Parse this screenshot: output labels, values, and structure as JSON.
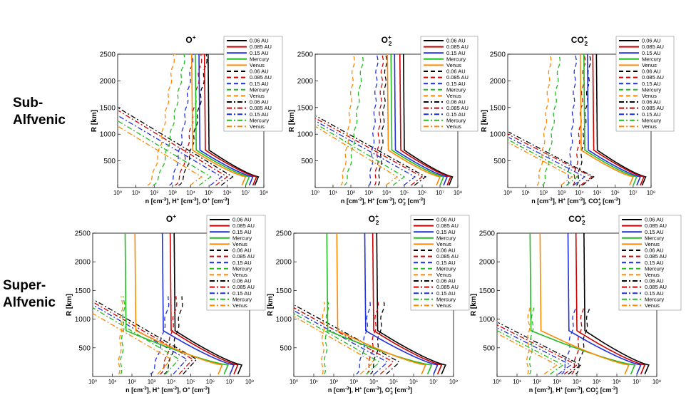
{
  "row_labels": {
    "sub": "Sub-\nAlfvenic",
    "super": "Super-\nAlfvenic"
  },
  "legend_entries": [
    {
      "label": "0.06 AU",
      "color": "#000000",
      "style": "solid"
    },
    {
      "label": "0.085 AU",
      "color": "#cc0000",
      "style": "solid"
    },
    {
      "label": "0.15 AU",
      "color": "#1f2fdd",
      "style": "solid"
    },
    {
      "label": "Mercury",
      "color": "#22bb22",
      "style": "solid"
    },
    {
      "label": "Venus",
      "color": "#ff8800",
      "style": "solid"
    },
    {
      "label": "0.06 AU",
      "color": "#000000",
      "style": "dash"
    },
    {
      "label": "0.085 AU",
      "color": "#cc0000",
      "style": "dash"
    },
    {
      "label": "0.15 AU",
      "color": "#1f2fdd",
      "style": "dash"
    },
    {
      "label": "Mercury",
      "color": "#22bb22",
      "style": "dash"
    },
    {
      "label": "Venus",
      "color": "#ff8800",
      "style": "dash"
    },
    {
      "label": "0.06 AU",
      "color": "#000000",
      "style": "dashdot"
    },
    {
      "label": "0.085 AU",
      "color": "#cc0000",
      "style": "dashdot"
    },
    {
      "label": "0.15 AU",
      "color": "#1f2fdd",
      "style": "dashdot"
    },
    {
      "label": "Mercury",
      "color": "#22bb22",
      "style": "dashdot"
    },
    {
      "label": "Venus",
      "color": "#ff8800",
      "style": "dashdot"
    }
  ],
  "chart_data": [
    {
      "type": "line",
      "row": "sub",
      "col": 0,
      "title": "O+",
      "xlabel": "n [cm-3], H+ [cm-3], O+ [cm-3]",
      "ylabel": "R [km]",
      "xscale": "log",
      "xlim": [
        1,
        100000000
      ],
      "ylim": [
        0,
        2500
      ],
      "yticks": [
        500,
        1000,
        1500,
        2000,
        2500
      ],
      "xticks": [
        "10⁰",
        "10¹",
        "10²",
        "10³",
        "10⁴",
        "10⁵",
        "10⁶",
        "10⁷",
        "10⁸"
      ],
      "series_groups": {
        "n": {
          "peak_log": [
            7.7,
            7.6,
            7.4,
            7.2,
            7.0
          ],
          "peak_alt": 200,
          "top_log": [
            5.0,
            4.8,
            4.5,
            4.3,
            4.1
          ],
          "break_alt": 700
        },
        "hplus": {
          "low_log": [
            3.3,
            3.1,
            2.8,
            1.9,
            1.6
          ],
          "high_log": [
            5.0,
            4.7,
            4.2,
            3.8,
            3.2
          ],
          "ramp_top": 2800
        },
        "ion": {
          "peak_log": [
            6.3,
            6.0,
            5.7,
            5.1,
            4.6
          ],
          "peak_alt": 200,
          "zero_alt": [
            1500,
            1450,
            1350,
            1250,
            1150
          ]
        }
      }
    },
    {
      "type": "line",
      "row": "sub",
      "col": 1,
      "title": "O2+",
      "xlabel": "n [cm-3], H+ [cm-3], O2+ [cm-3]",
      "ylabel": "R [km]",
      "xscale": "log",
      "xlim": [
        1,
        100000000
      ],
      "ylim": [
        0,
        2500
      ],
      "yticks": [
        500,
        1000,
        1500,
        2000,
        2500
      ],
      "xticks": [
        "10⁰",
        "10¹",
        "10²",
        "10³",
        "10⁴",
        "10⁵",
        "10⁶",
        "10⁷",
        "10⁸"
      ],
      "series_groups": {
        "n": {
          "peak_log": [
            7.7,
            7.6,
            7.4,
            7.2,
            7.0
          ],
          "peak_alt": 200,
          "top_log": [
            5.0,
            4.8,
            4.5,
            4.3,
            4.1
          ],
          "break_alt": 700
        },
        "hplus": {
          "low_log": [
            3.5,
            3.3,
            3.0,
            1.6,
            1.4
          ],
          "high_log": [
            4.0,
            3.8,
            3.5,
            2.7,
            2.2
          ],
          "ramp_top": 2600
        },
        "ion": {
          "peak_log": [
            6.2,
            6.0,
            5.6,
            5.0,
            4.6
          ],
          "peak_alt": 200,
          "zero_alt": [
            1350,
            1300,
            1250,
            1200,
            1150
          ]
        }
      }
    },
    {
      "type": "line",
      "row": "sub",
      "col": 2,
      "title": "CO2+",
      "xlabel": "n [cm-3], H+ [cm-3], CO2+ [cm-3]",
      "ylabel": "R [km]",
      "xscale": "log",
      "xlim": [
        1,
        100000000
      ],
      "ylim": [
        0,
        2500
      ],
      "yticks": [
        500,
        1000,
        1500,
        2000,
        2500
      ],
      "xticks": [
        "10⁰",
        "10¹",
        "10²",
        "10³",
        "10⁴",
        "10⁵",
        "10⁶",
        "10⁷",
        "10⁸"
      ],
      "series_groups": {
        "n": {
          "peak_log": [
            7.7,
            7.6,
            7.4,
            7.2,
            7.0
          ],
          "peak_alt": 200,
          "top_log": [
            5.0,
            4.8,
            4.5,
            4.3,
            4.1
          ],
          "break_alt": 700
        },
        "hplus": {
          "low_log": [
            3.8,
            3.6,
            3.3,
            1.9,
            1.6
          ],
          "high_log": [
            4.6,
            4.3,
            3.8,
            2.9,
            2.4
          ],
          "ramp_top": 2500
        },
        "ion": {
          "peak_log": [
            4.8,
            4.7,
            4.3,
            3.9,
            3.6
          ],
          "peak_alt": 200,
          "zero_alt": [
            1050,
            1000,
            950,
            900,
            850
          ]
        }
      }
    },
    {
      "type": "line",
      "row": "super",
      "col": 0,
      "title": "O+",
      "xlabel": "n [cm-3], H+ [cm-3], O+ [cm-3]",
      "ylabel": "R [km]",
      "xscale": "log",
      "xlim": [
        1,
        100000000
      ],
      "ylim": [
        0,
        2500
      ],
      "yticks": [
        500,
        1000,
        1500,
        2000,
        2500
      ],
      "xticks": [
        "10⁰",
        "10¹",
        "10²",
        "10³",
        "10⁴",
        "10⁵",
        "10⁶",
        "10⁷",
        "10⁸"
      ],
      "series_groups": {
        "n": {
          "peak_log": [
            7.6,
            7.4,
            7.2,
            6.9,
            6.6
          ],
          "peak_alt": 200,
          "top_log": [
            4.2,
            4.0,
            3.6,
            1.7,
            2.2
          ],
          "break_alt": 800
        },
        "hplus": {
          "low_log": [
            3.6,
            3.4,
            2.9,
            1.4,
            1.3
          ],
          "high_log": [
            4.6,
            4.3,
            3.9,
            1.6,
            1.5
          ],
          "ramp_top": 1400
        },
        "ion": {
          "peak_log": [
            5.3,
            5.1,
            4.8,
            4.4,
            4.0
          ],
          "peak_alt": 300,
          "zero_alt": [
            1350,
            1300,
            1250,
            1200,
            1100
          ]
        }
      }
    },
    {
      "type": "line",
      "row": "super",
      "col": 1,
      "title": "O2+",
      "xlabel": "n [cm-3], H+ [cm-3], O2+ [cm-3]",
      "ylabel": "R [km]",
      "xscale": "log",
      "xlim": [
        1,
        100000000
      ],
      "ylim": [
        0,
        2500
      ],
      "yticks": [
        500,
        1000,
        1500,
        2000,
        2500
      ],
      "xticks": [
        "10⁰",
        "10¹",
        "10²",
        "10³",
        "10⁴",
        "10⁵",
        "10⁶",
        "10⁷",
        "10⁸"
      ],
      "series_groups": {
        "n": {
          "peak_log": [
            7.6,
            7.4,
            7.2,
            6.9,
            6.6
          ],
          "peak_alt": 200,
          "top_log": [
            4.2,
            4.0,
            3.6,
            1.7,
            2.2
          ],
          "break_alt": 800
        },
        "hplus": {
          "low_log": [
            3.8,
            3.6,
            3.1,
            1.5,
            1.4
          ],
          "high_log": [
            4.5,
            4.2,
            3.8,
            1.7,
            1.5
          ],
          "ramp_top": 1300
        },
        "ion": {
          "peak_log": [
            5.3,
            5.0,
            4.7,
            4.3,
            4.0
          ],
          "peak_alt": 250,
          "zero_alt": [
            1250,
            1200,
            1150,
            1100,
            1050
          ]
        }
      }
    },
    {
      "type": "line",
      "row": "super",
      "col": 2,
      "title": "CO2+",
      "xlabel": "n [cm-3], H+ [cm-3], CO2+ [cm-3]",
      "ylabel": "R [km]",
      "xscale": "log",
      "xlim": [
        1,
        100000000
      ],
      "ylim": [
        0,
        2500
      ],
      "yticks": [
        500,
        1000,
        1500,
        2000,
        2500
      ],
      "xticks": [
        "10⁰",
        "10¹",
        "10²",
        "10³",
        "10⁴",
        "10⁵",
        "10⁶",
        "10⁷",
        "10⁸"
      ],
      "series_groups": {
        "n": {
          "peak_log": [
            7.6,
            7.4,
            7.2,
            6.9,
            6.6
          ],
          "peak_alt": 200,
          "top_log": [
            4.4,
            4.0,
            3.6,
            1.7,
            2.2
          ],
          "break_alt": 800
        },
        "hplus": {
          "low_log": [
            3.9,
            3.7,
            3.2,
            1.6,
            1.5
          ],
          "high_log": [
            4.6,
            4.3,
            3.9,
            1.8,
            1.6
          ],
          "ramp_top": 1200
        },
        "ion": {
          "peak_log": [
            4.2,
            4.0,
            3.7,
            3.3,
            3.0
          ],
          "peak_alt": 200,
          "zero_alt": [
            950,
            900,
            850,
            800,
            750
          ]
        }
      }
    }
  ]
}
